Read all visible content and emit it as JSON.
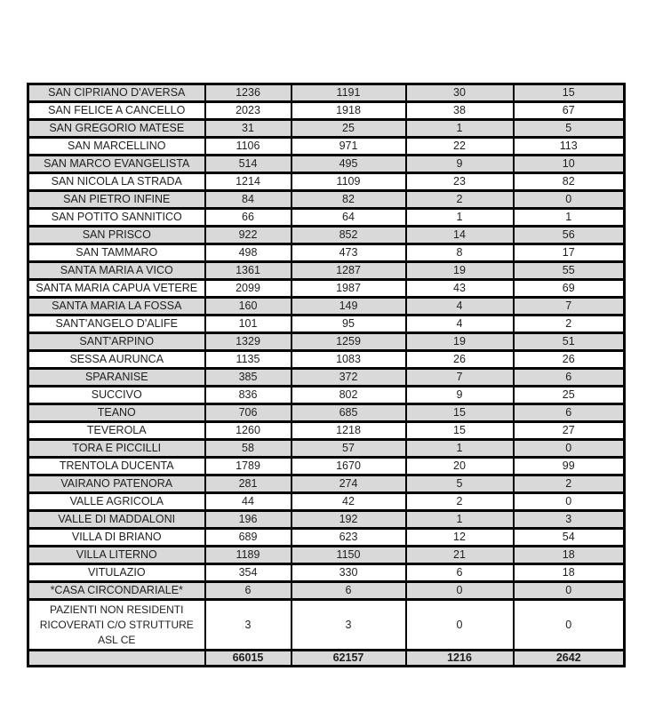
{
  "colors": {
    "row_shaded": "#d9d9d9",
    "row_plain": "#ffffff",
    "border": "#000000",
    "text": "#1f1f1f"
  },
  "table": {
    "rows": [
      {
        "name": "SAN CIPRIANO D'AVERSA",
        "values": [
          "1236",
          "1191",
          "30",
          "15"
        ]
      },
      {
        "name": "SAN FELICE A CANCELLO",
        "values": [
          "2023",
          "1918",
          "38",
          "67"
        ]
      },
      {
        "name": "SAN GREGORIO MATESE",
        "values": [
          "31",
          "25",
          "1",
          "5"
        ]
      },
      {
        "name": "SAN MARCELLINO",
        "values": [
          "1106",
          "971",
          "22",
          "113"
        ]
      },
      {
        "name": "SAN MARCO EVANGELISTA",
        "values": [
          "514",
          "495",
          "9",
          "10"
        ]
      },
      {
        "name": "SAN NICOLA LA STRADA",
        "values": [
          "1214",
          "1109",
          "23",
          "82"
        ]
      },
      {
        "name": "SAN PIETRO INFINE",
        "values": [
          "84",
          "82",
          "2",
          "0"
        ]
      },
      {
        "name": "SAN POTITO SANNITICO",
        "values": [
          "66",
          "64",
          "1",
          "1"
        ]
      },
      {
        "name": "SAN PRISCO",
        "values": [
          "922",
          "852",
          "14",
          "56"
        ]
      },
      {
        "name": "SAN TAMMARO",
        "values": [
          "498",
          "473",
          "8",
          "17"
        ]
      },
      {
        "name": "SANTA MARIA A VICO",
        "values": [
          "1361",
          "1287",
          "19",
          "55"
        ]
      },
      {
        "name": "SANTA MARIA CAPUA VETERE",
        "values": [
          "2099",
          "1987",
          "43",
          "69"
        ]
      },
      {
        "name": "SANTA MARIA LA FOSSA",
        "values": [
          "160",
          "149",
          "4",
          "7"
        ]
      },
      {
        "name": "SANT'ANGELO D'ALIFE",
        "values": [
          "101",
          "95",
          "4",
          "2"
        ]
      },
      {
        "name": "SANT'ARPINO",
        "values": [
          "1329",
          "1259",
          "19",
          "51"
        ]
      },
      {
        "name": "SESSA AURUNCA",
        "values": [
          "1135",
          "1083",
          "26",
          "26"
        ]
      },
      {
        "name": "SPARANISE",
        "values": [
          "385",
          "372",
          "7",
          "6"
        ]
      },
      {
        "name": "SUCCIVO",
        "values": [
          "836",
          "802",
          "9",
          "25"
        ]
      },
      {
        "name": "TEANO",
        "values": [
          "706",
          "685",
          "15",
          "6"
        ]
      },
      {
        "name": "TEVEROLA",
        "values": [
          "1260",
          "1218",
          "15",
          "27"
        ]
      },
      {
        "name": "TORA E PICCILLI",
        "values": [
          "58",
          "57",
          "1",
          "0"
        ]
      },
      {
        "name": "TRENTOLA DUCENTA",
        "values": [
          "1789",
          "1670",
          "20",
          "99"
        ]
      },
      {
        "name": "VAIRANO PATENORA",
        "values": [
          "281",
          "274",
          "5",
          "2"
        ]
      },
      {
        "name": "VALLE AGRICOLA",
        "values": [
          "44",
          "42",
          "2",
          "0"
        ]
      },
      {
        "name": "VALLE DI MADDALONI",
        "values": [
          "196",
          "192",
          "1",
          "3"
        ]
      },
      {
        "name": "VILLA DI BRIANO",
        "values": [
          "689",
          "623",
          "12",
          "54"
        ]
      },
      {
        "name": "VILLA LITERNO",
        "values": [
          "1189",
          "1150",
          "21",
          "18"
        ]
      },
      {
        "name": "VITULAZIO",
        "values": [
          "354",
          "330",
          "6",
          "18"
        ]
      },
      {
        "name": "*CASA CIRCONDARIALE*",
        "values": [
          "6",
          "6",
          "0",
          "0"
        ]
      },
      {
        "name": "PAZIENTI NON RESIDENTI RICOVERATI C/O STRUTTURE ASL CE",
        "values": [
          "3",
          "3",
          "0",
          "0"
        ]
      }
    ],
    "totals": {
      "name": "",
      "values": [
        "66015",
        "62157",
        "1216",
        "2642"
      ]
    }
  }
}
